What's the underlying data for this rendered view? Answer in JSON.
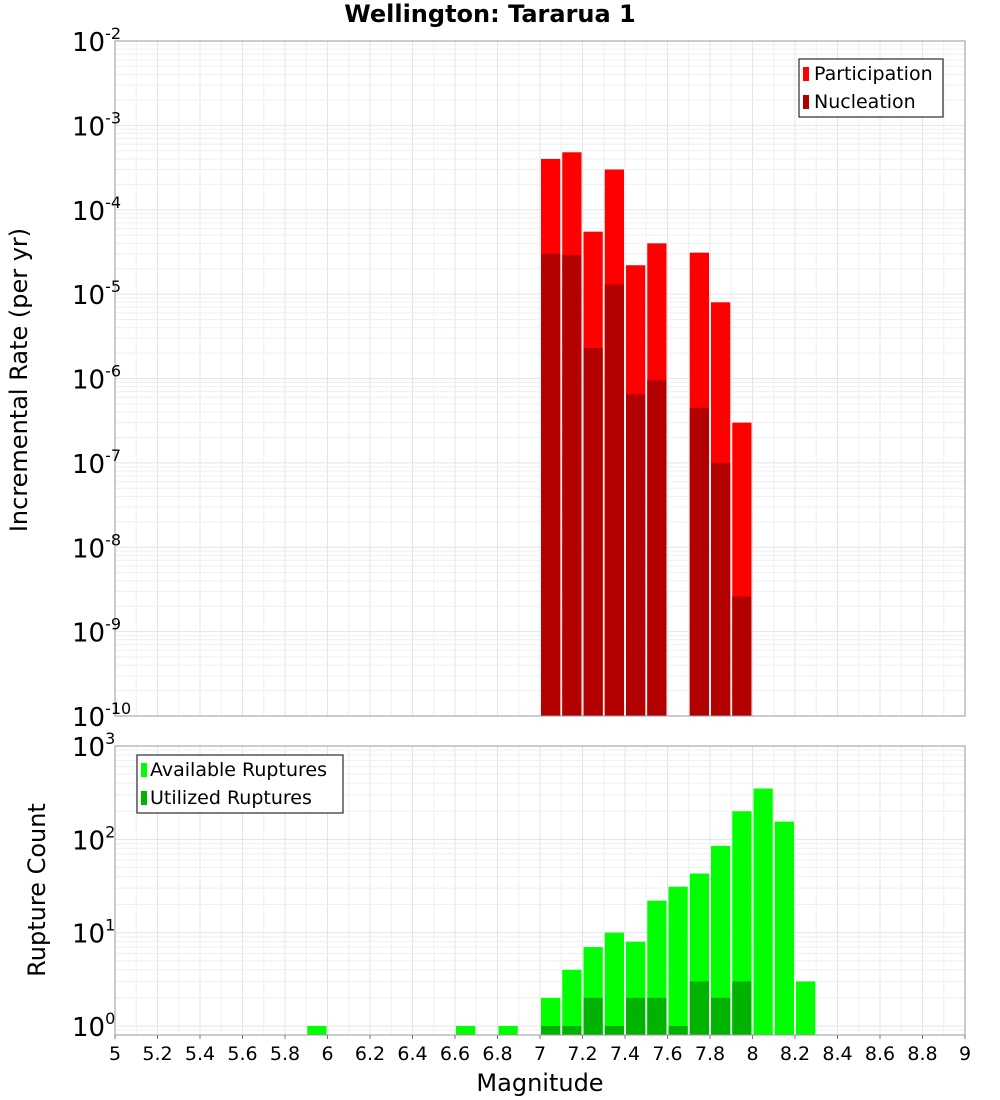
{
  "title": "Wellington: Tararua 1",
  "colors": {
    "participation": "#ff0000",
    "nucleation": "#b30000",
    "available": "#00ff00",
    "utilized": "#00b300"
  },
  "chart_data": [
    {
      "type": "bar",
      "panel": "top",
      "ylabel": "Incremental Rate (per yr)",
      "yscale": "log",
      "ylim": [
        1e-10,
        0.01
      ],
      "xlim": [
        5,
        9
      ],
      "yticks": [
        {
          "base": "10",
          "exp": "-10"
        },
        {
          "base": "10",
          "exp": "-9"
        },
        {
          "base": "10",
          "exp": "-8"
        },
        {
          "base": "10",
          "exp": "-7"
        },
        {
          "base": "10",
          "exp": "-6"
        },
        {
          "base": "10",
          "exp": "-5"
        },
        {
          "base": "10",
          "exp": "-4"
        },
        {
          "base": "10",
          "exp": "-3"
        },
        {
          "base": "10",
          "exp": "-2"
        }
      ],
      "legend": {
        "placement": "top-right",
        "entries": [
          "Participation",
          "Nucleation"
        ]
      },
      "series": [
        {
          "name": "Participation",
          "x": [
            7.05,
            7.15,
            7.25,
            7.35,
            7.45,
            7.55,
            7.75,
            7.85,
            7.95
          ],
          "values": [
            0.0004,
            0.00048,
            5.5e-05,
            0.0003,
            2.2e-05,
            4e-05,
            3.1e-05,
            8e-06,
            3e-07
          ]
        },
        {
          "name": "Nucleation",
          "x": [
            7.05,
            7.15,
            7.25,
            7.35,
            7.45,
            7.55,
            7.75,
            7.85,
            7.95
          ],
          "values": [
            3e-05,
            2.9e-05,
            2.3e-06,
            1.3e-05,
            6.5e-07,
            9.5e-07,
            4.5e-07,
            1e-07,
            2.6e-09
          ]
        }
      ]
    },
    {
      "type": "bar",
      "panel": "bottom",
      "xlabel": "Magnitude",
      "ylabel": "Rupture Count",
      "yscale": "log",
      "ylim": [
        0.8,
        1000
      ],
      "xlim": [
        5,
        9
      ],
      "xticks": [
        "5",
        "5.2",
        "5.4",
        "5.6",
        "5.8",
        "6",
        "6.2",
        "6.4",
        "6.6",
        "6.8",
        "7",
        "7.2",
        "7.4",
        "7.6",
        "7.8",
        "8",
        "8.2",
        "8.4",
        "8.6",
        "8.8",
        "9"
      ],
      "yticks": [
        {
          "base": "10",
          "exp": "0"
        },
        {
          "base": "10",
          "exp": "1"
        },
        {
          "base": "10",
          "exp": "2"
        },
        {
          "base": "10",
          "exp": "3"
        }
      ],
      "legend": {
        "placement": "top-left",
        "entries": [
          "Available Ruptures",
          "Utilized Ruptures"
        ]
      },
      "series": [
        {
          "name": "Available Ruptures",
          "x": [
            5.95,
            6.65,
            6.85,
            7.05,
            7.15,
            7.25,
            7.35,
            7.45,
            7.55,
            7.65,
            7.75,
            7.85,
            7.95,
            8.05,
            8.15,
            8.25
          ],
          "values": [
            1,
            1,
            1,
            2,
            4,
            7,
            10,
            8,
            22,
            31,
            43,
            85,
            200,
            350,
            155,
            3
          ]
        },
        {
          "name": "Utilized Ruptures",
          "x": [
            7.05,
            7.15,
            7.25,
            7.35,
            7.45,
            7.55,
            7.65,
            7.75,
            7.85,
            7.95
          ],
          "values": [
            1,
            1,
            2,
            1,
            2,
            2,
            1,
            3,
            2,
            3
          ]
        }
      ]
    }
  ]
}
